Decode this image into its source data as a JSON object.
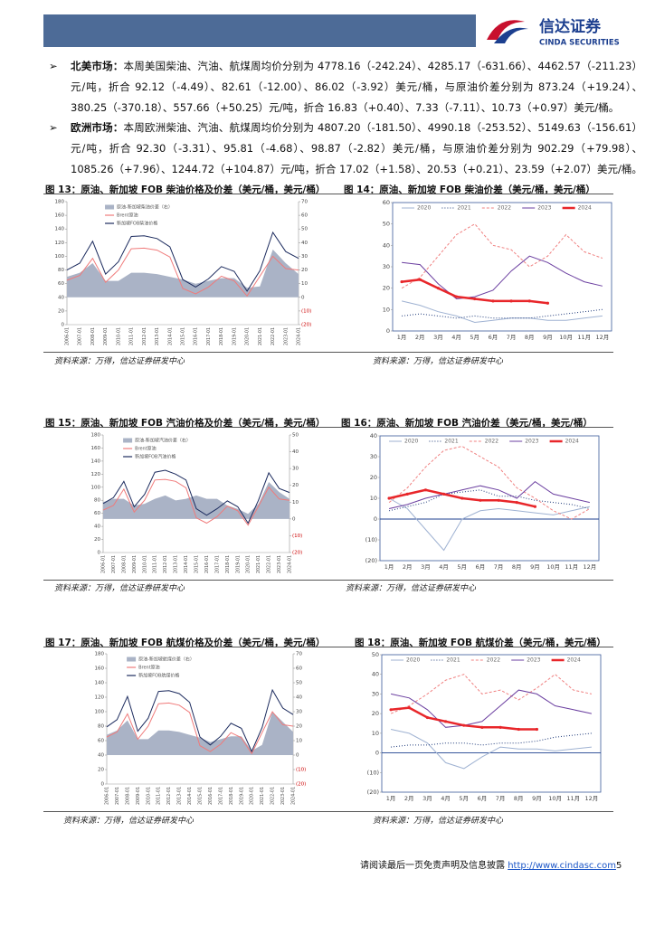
{
  "header": {
    "logo_cn": "信达证券",
    "logo_en": "CINDA SECURITIES"
  },
  "paragraphs": [
    {
      "label": "北美市场：",
      "text": "本周美国柴油、汽油、航煤周均价分别为 4778.16（-242.24）、4285.17（-631.66）、4462.57（-211.23）元/吨，折合 92.12（-4.49）、82.61（-12.00）、86.02（-3.92）美元/桶，与原油价差分别为 873.24（+19.24）、380.25（-370.18）、557.66（+50.25）元/吨，折合 16.83（+0.40）、7.33（-7.11）、10.73（+0.97）美元/桶。"
    },
    {
      "label": "欧洲市场：",
      "text": "本周欧洲柴油、汽油、航煤周均价分别为 4807.20（-181.50）、4990.18（-253.52）、5149.63（-156.61）元/吨，折合 92.30（-3.31）、95.81（-4.68）、98.87（-2.82）美元/桶，与原油价差分别为 902.29（+79.98）、1085.26（+7.96）、1244.72（+104.87）元/吨，折合 17.02（+1.58）、20.53（+0.21）、23.59（+2.07）美元/桶。"
    }
  ],
  "figures": [
    {
      "title": "图 13：原油、新加坡 FOB 柴油价格及价差（美元/桶，美元/桶）",
      "source": "资料来源：万得，信达证券研发中心"
    },
    {
      "title": "图 14：原油、新加坡 FOB 柴油价差（美元/桶，美元/桶）",
      "source": "资料来源：万得，信达证券研发中心"
    },
    {
      "title": "图 15：原油、新加坡 FOB 汽油价格及价差（美元/桶，美元/桶）",
      "source": "资料来源：万得，信达证券研发中心"
    },
    {
      "title": "图 16：原油、新加坡 FOB 汽油价差（美元/桶，美元/桶）",
      "source": "资料来源：万得，信达证券研发中心"
    },
    {
      "title": "图 17：原油、新加坡 FOB 航煤价格及价差（美元/桶，美元/桶）",
      "source": "资料来源：万得，信达证券研发中心"
    },
    {
      "title": "图 18：原油、新加坡 FOB 航煤价差（美元/桶，美元/桶）",
      "source": "资料来源：万得，信达证券研发中心"
    }
  ],
  "chart_data": [
    {
      "type": "combo",
      "categories": [
        "2006-01",
        "2007-01",
        "2008-01",
        "2009-01",
        "2010-01",
        "2011-01",
        "2012-01",
        "2013-01",
        "2014-01",
        "2015-01",
        "2016-01",
        "2017-01",
        "2018-01",
        "2019-01",
        "2020-01",
        "2021-01",
        "2022-01",
        "2023-01",
        "2024-01"
      ],
      "ylim": [
        0,
        180
      ],
      "yticks": [
        0,
        20,
        40,
        60,
        80,
        100,
        120,
        140,
        160,
        180
      ],
      "y2lim": [
        -20,
        70
      ],
      "y2ticks": [
        {
          "value": -20,
          "label": "(20)"
        },
        {
          "value": -10,
          "label": "(10)"
        },
        0,
        10,
        20,
        30,
        40,
        50,
        60,
        70
      ],
      "series": [
        {
          "name": "原油-新加坡柴油价差（右）",
          "color": "#aab3c6",
          "style": "area",
          "axis": "y2",
          "values": [
            15,
            18,
            25,
            12,
            12,
            18,
            18,
            17,
            15,
            13,
            10,
            12,
            14,
            14,
            7,
            8,
            35,
            25,
            17
          ]
        },
        {
          "name": "Brent原油",
          "color": "#f07a7a",
          "values": [
            65,
            72,
            97,
            62,
            80,
            111,
            112,
            109,
            99,
            53,
            45,
            55,
            71,
            64,
            42,
            71,
            100,
            82,
            80
          ]
        },
        {
          "name": "新加坡FOB柴油价格",
          "color": "#1c2b5e",
          "values": [
            80,
            90,
            122,
            74,
            92,
            129,
            130,
            126,
            114,
            66,
            55,
            67,
            85,
            78,
            49,
            79,
            135,
            107,
            97
          ]
        }
      ]
    },
    {
      "type": "line",
      "categories": [
        "1月",
        "2月",
        "3月",
        "4月",
        "5月",
        "6月",
        "7月",
        "8月",
        "9月",
        "10月",
        "11月",
        "12月"
      ],
      "ylim": [
        0,
        60
      ],
      "yticks": [
        0,
        10,
        20,
        30,
        40,
        50,
        60
      ],
      "series": [
        {
          "name": "2020",
          "color": "#9fb2d2",
          "values": [
            14,
            12,
            9,
            7,
            4,
            5,
            6,
            6,
            5,
            5,
            6,
            7
          ]
        },
        {
          "name": "2021",
          "color": "#1f3a7a",
          "dash": "1 2",
          "values": [
            7,
            8,
            7,
            6,
            7,
            6,
            6,
            6,
            7,
            8,
            9,
            10
          ]
        },
        {
          "name": "2022",
          "color": "#f08080",
          "dash": "3 2",
          "values": [
            20,
            25,
            35,
            45,
            50,
            40,
            38,
            30,
            35,
            45,
            37,
            34
          ]
        },
        {
          "name": "2023",
          "color": "#6b3fa0",
          "values": [
            32,
            31,
            22,
            15,
            16,
            19,
            28,
            35,
            32,
            27,
            23,
            21
          ]
        },
        {
          "name": "2024",
          "color": "#e8262a",
          "marker": true,
          "width": 2.5,
          "values": [
            23,
            24,
            20,
            16,
            15,
            14,
            14,
            14,
            13,
            null,
            null,
            null
          ]
        }
      ]
    },
    {
      "type": "combo",
      "categories": [
        "2006-01",
        "2007-01",
        "2008-01",
        "2009-01",
        "2010-01",
        "2011-01",
        "2012-01",
        "2013-01",
        "2014-01",
        "2015-01",
        "2016-01",
        "2017-01",
        "2018-01",
        "2019-01",
        "2020-01",
        "2021-01",
        "2022-01",
        "2023-01",
        "2024-01"
      ],
      "ylim": [
        0,
        180
      ],
      "yticks": [
        0,
        20,
        40,
        60,
        80,
        100,
        120,
        140,
        160,
        180
      ],
      "y2lim": [
        -20,
        50
      ],
      "y2ticks": [
        {
          "value": -20,
          "label": "(20)"
        },
        {
          "value": -10,
          "label": "(10)"
        },
        0,
        10,
        20,
        30,
        40,
        50
      ],
      "series": [
        {
          "name": "原油-新加坡汽油价差（右）",
          "color": "#aab3c6",
          "style": "area",
          "axis": "y2",
          "values": [
            10,
            12,
            12,
            8,
            9,
            12,
            14,
            11,
            12,
            14,
            12,
            12,
            8,
            6,
            3,
            9,
            22,
            16,
            12
          ]
        },
        {
          "name": "Brent原油",
          "color": "#f07a7a",
          "values": [
            65,
            72,
            97,
            62,
            80,
            111,
            112,
            109,
            99,
            53,
            45,
            55,
            71,
            64,
            42,
            71,
            100,
            82,
            80
          ]
        },
        {
          "name": "新加坡FOB汽油价格",
          "color": "#1c2b5e",
          "values": [
            75,
            84,
            109,
            70,
            89,
            123,
            126,
            120,
            111,
            67,
            57,
            67,
            79,
            70,
            45,
            80,
            122,
            98,
            92
          ]
        }
      ]
    },
    {
      "type": "line",
      "categories": [
        "1月",
        "2月",
        "3月",
        "4月",
        "5月",
        "6月",
        "7月",
        "8月",
        "9月",
        "10月",
        "11月",
        "12月"
      ],
      "ylim": [
        -20,
        40
      ],
      "yticks": [
        {
          "value": -20,
          "label": "(20)"
        },
        {
          "value": -10,
          "label": "(10)"
        },
        0,
        10,
        20,
        30,
        40
      ],
      "series": [
        {
          "name": "2020",
          "color": "#9fb2d2",
          "values": [
            10,
            5,
            -5,
            -15,
            0,
            4,
            5,
            4,
            3,
            2,
            4,
            6
          ]
        },
        {
          "name": "2021",
          "color": "#1f3a7a",
          "dash": "1 2",
          "values": [
            4,
            6,
            8,
            12,
            13,
            14,
            11,
            11,
            9,
            8,
            7,
            5
          ]
        },
        {
          "name": "2022",
          "color": "#f08080",
          "dash": "3 2",
          "values": [
            8,
            15,
            25,
            33,
            35,
            30,
            25,
            15,
            10,
            4,
            0,
            5
          ]
        },
        {
          "name": "2023",
          "color": "#6b3fa0",
          "values": [
            5,
            7,
            10,
            12,
            14,
            16,
            14,
            10,
            18,
            12,
            10,
            8
          ]
        },
        {
          "name": "2024",
          "color": "#e8262a",
          "marker": true,
          "width": 2.5,
          "values": [
            10,
            12,
            14,
            12,
            10,
            9,
            9,
            8,
            6,
            null,
            null,
            null
          ]
        }
      ]
    },
    {
      "type": "combo",
      "categories": [
        "2006-01",
        "2007-01",
        "2008-01",
        "2009-01",
        "2010-01",
        "2011-01",
        "2012-01",
        "2013-01",
        "2014-01",
        "2015-01",
        "2016-01",
        "2017-01",
        "2018-01",
        "2019-01",
        "2020-01",
        "2021-01",
        "2022-01",
        "2023-01",
        "2024-01"
      ],
      "ylim": [
        0,
        180
      ],
      "yticks": [
        0,
        20,
        40,
        60,
        80,
        100,
        120,
        140,
        160,
        180
      ],
      "y2lim": [
        -20,
        70
      ],
      "y2ticks": [
        {
          "value": -20,
          "label": "(20)"
        },
        {
          "value": -10,
          "label": "(10)"
        },
        0,
        10,
        20,
        30,
        40,
        50,
        60,
        70
      ],
      "series": [
        {
          "name": "原油-新加坡航煤价差（右）",
          "color": "#aab3c6",
          "style": "area",
          "axis": "y2",
          "values": [
            14,
            17,
            24,
            11,
            11,
            17,
            17,
            16,
            14,
            12,
            9,
            11,
            13,
            13,
            3,
            7,
            30,
            23,
            16
          ]
        },
        {
          "name": "Brent原油",
          "color": "#f07a7a",
          "values": [
            65,
            72,
            97,
            62,
            80,
            111,
            112,
            109,
            99,
            53,
            45,
            55,
            71,
            64,
            42,
            71,
            100,
            82,
            80
          ]
        },
        {
          "name": "新加坡FOB航煤价格",
          "color": "#1c2b5e",
          "values": [
            79,
            89,
            121,
            73,
            91,
            128,
            129,
            125,
            113,
            65,
            54,
            66,
            84,
            77,
            45,
            78,
            130,
            105,
            96
          ]
        }
      ]
    },
    {
      "type": "line",
      "categories": [
        "1月",
        "2月",
        "3月",
        "4月",
        "5月",
        "6月",
        "7月",
        "8月",
        "9月",
        "10月",
        "11月",
        "12月"
      ],
      "ylim": [
        -20,
        50
      ],
      "yticks": [
        {
          "value": -20,
          "label": "(20)"
        },
        {
          "value": -10,
          "label": "(10)"
        },
        0,
        10,
        20,
        30,
        40,
        50
      ],
      "series": [
        {
          "name": "2020",
          "color": "#9fb2d2",
          "values": [
            12,
            10,
            5,
            -5,
            -8,
            -2,
            3,
            2,
            2,
            1,
            2,
            3
          ]
        },
        {
          "name": "2021",
          "color": "#1f3a7a",
          "dash": "1 2",
          "values": [
            3,
            4,
            4,
            5,
            5,
            4,
            5,
            5,
            6,
            8,
            9,
            10
          ]
        },
        {
          "name": "2022",
          "color": "#f08080",
          "dash": "3 2",
          "values": [
            20,
            24,
            30,
            37,
            40,
            30,
            32,
            27,
            33,
            40,
            32,
            30
          ]
        },
        {
          "name": "2023",
          "color": "#6b3fa0",
          "values": [
            30,
            28,
            22,
            13,
            14,
            16,
            24,
            32,
            30,
            24,
            22,
            20
          ]
        },
        {
          "name": "2024",
          "color": "#e8262a",
          "marker": true,
          "width": 2.5,
          "values": [
            22,
            23,
            18,
            16,
            14,
            13,
            13,
            12,
            12,
            null,
            null,
            null
          ]
        }
      ]
    }
  ],
  "footer": {
    "notice": "请阅读最后一页免责声明及信息披露",
    "url": "http://www.cindasc.com",
    "page": "5"
  }
}
